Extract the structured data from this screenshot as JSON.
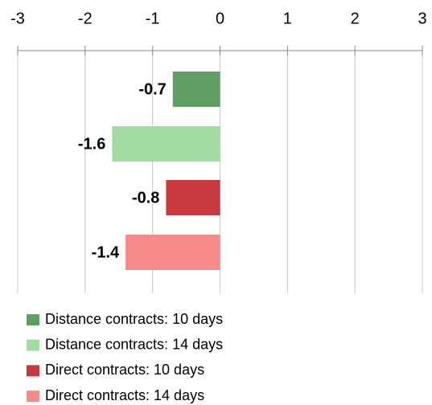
{
  "chart_data": {
    "type": "bar",
    "orientation": "horizontal",
    "xlim": [
      -3,
      3
    ],
    "xticks": [
      -3,
      -2,
      -1,
      0,
      1,
      2,
      3
    ],
    "grid": true,
    "legend": "bottom",
    "series": [
      {
        "name": "Distance contracts: 10 days",
        "color": "#5f9e62",
        "values": [
          -0.7
        ]
      },
      {
        "name": "Distance contracts: 14 days",
        "color": "#a3dca0",
        "values": [
          -1.6
        ]
      },
      {
        "name": "Direct contracts: 10 days",
        "color": "#c9383f",
        "values": [
          -0.8
        ]
      },
      {
        "name": "Direct contracts: 14 days",
        "color": "#f7898a",
        "values": [
          -1.4
        ]
      }
    ]
  }
}
